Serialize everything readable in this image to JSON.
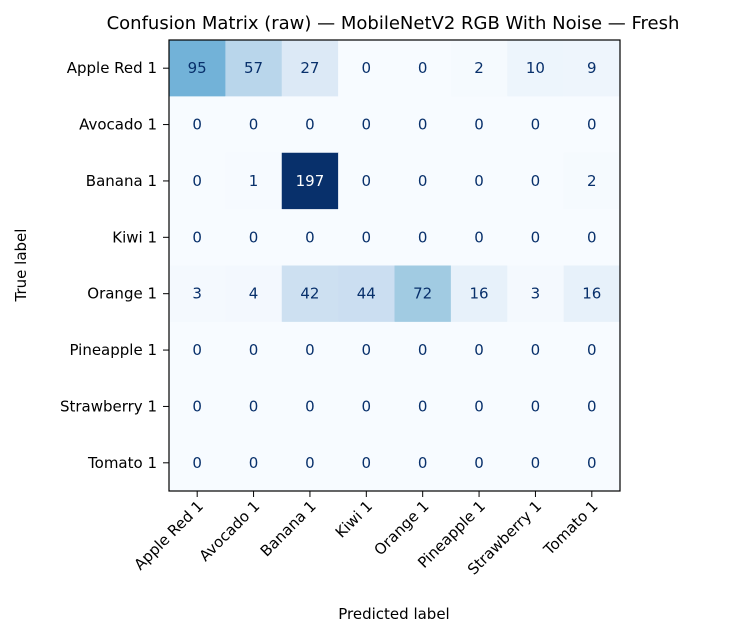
{
  "chart_data": {
    "type": "heatmap",
    "title": "Confusion Matrix (raw) — MobileNetV2 RGB With Noise — Fresh",
    "xlabel": "Predicted label",
    "ylabel": "True label",
    "x_categories": [
      "Apple Red 1",
      "Avocado 1",
      "Banana 1",
      "Kiwi 1",
      "Orange 1",
      "Pineapple 1",
      "Strawberry 1",
      "Tomato 1"
    ],
    "y_categories": [
      "Apple Red 1",
      "Avocado 1",
      "Banana 1",
      "Kiwi 1",
      "Orange 1",
      "Pineapple 1",
      "Strawberry 1",
      "Tomato 1"
    ],
    "values": [
      [
        95,
        57,
        27,
        0,
        0,
        2,
        10,
        9
      ],
      [
        0,
        0,
        0,
        0,
        0,
        0,
        0,
        0
      ],
      [
        0,
        1,
        197,
        0,
        0,
        0,
        0,
        2
      ],
      [
        0,
        0,
        0,
        0,
        0,
        0,
        0,
        0
      ],
      [
        3,
        4,
        42,
        44,
        72,
        16,
        3,
        16
      ],
      [
        0,
        0,
        0,
        0,
        0,
        0,
        0,
        0
      ],
      [
        0,
        0,
        0,
        0,
        0,
        0,
        0,
        0
      ],
      [
        0,
        0,
        0,
        0,
        0,
        0,
        0,
        0
      ]
    ],
    "colormap": "Blues",
    "vmin": 0,
    "vmax": 197,
    "grid": false,
    "legend": "none"
  }
}
